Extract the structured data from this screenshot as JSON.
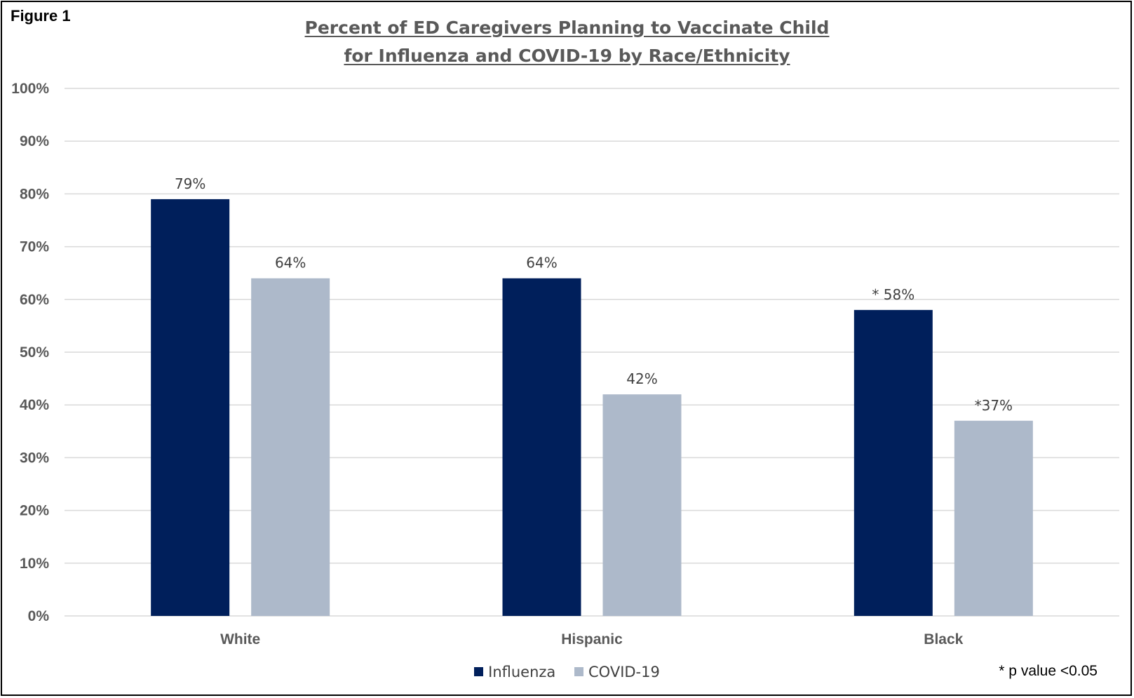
{
  "figure_label": "Figure 1",
  "footnote": "* p value <0.05",
  "colors": {
    "influenza": "#001F5B",
    "covid": "#ADB9CA",
    "grid": "#D9D9D9",
    "text": "#595959"
  },
  "chart_data": {
    "type": "bar",
    "title_line1": "Percent of ED Caregivers Planning to Vaccinate Child",
    "title_line2": "for Influenza and COVID-19 by Race/Ethnicity",
    "xlabel": "",
    "ylabel": "",
    "ylim": [
      0,
      100
    ],
    "yticks": [
      "0%",
      "10%",
      "20%",
      "30%",
      "40%",
      "50%",
      "60%",
      "70%",
      "80%",
      "90%",
      "100%"
    ],
    "categories": [
      "White",
      "Hispanic",
      "Black"
    ],
    "series": [
      {
        "name": "Influenza",
        "values": [
          79,
          64,
          58
        ],
        "labels": [
          "79%",
          "64%",
          "* 58%"
        ]
      },
      {
        "name": "COVID-19",
        "values": [
          64,
          42,
          37
        ],
        "labels": [
          "64%",
          "42%",
          "*37%"
        ]
      }
    ],
    "legend_position": "bottom",
    "grid": true
  }
}
